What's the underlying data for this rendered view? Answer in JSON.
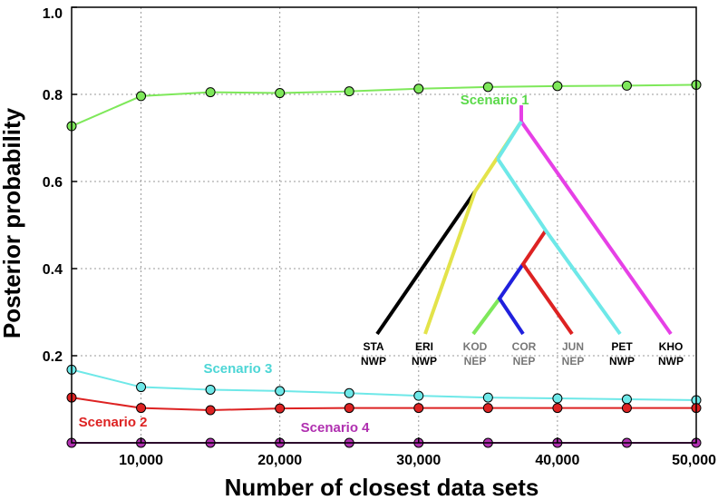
{
  "chart_data": {
    "type": "line",
    "xlabel": "Number of closest data sets",
    "ylabel": "Posterior probability",
    "xlim": [
      5000,
      50000
    ],
    "ylim": [
      0,
      1.0
    ],
    "grid": true,
    "x_ticks": [
      10000,
      20000,
      30000,
      40000,
      50000
    ],
    "x_tick_labels": [
      "10,000",
      "20,000",
      "30,000",
      "40,000",
      "50,000"
    ],
    "y_ticks": [
      0.2,
      0.4,
      0.6,
      0.8,
      1.0
    ],
    "y_tick_labels": [
      "0.2",
      "0.4",
      "0.6",
      "0.8",
      "1.0"
    ],
    "x": [
      5000,
      10000,
      15000,
      20000,
      25000,
      30000,
      35000,
      40000,
      45000,
      50000
    ],
    "series": [
      {
        "name": "Scenario 1",
        "color": "#7ee85a",
        "values": [
          0.727,
          0.796,
          0.805,
          0.803,
          0.807,
          0.813,
          0.817,
          0.819,
          0.82,
          0.822
        ],
        "label_pos": [
          0.777,
          33000
        ]
      },
      {
        "name": "Scenario 3",
        "color": "#6ee8e8",
        "values": [
          0.168,
          0.128,
          0.122,
          0.119,
          0.114,
          0.108,
          0.104,
          0.102,
          0.1,
          0.098
        ],
        "label_pos": [
          0.16,
          14500
        ]
      },
      {
        "name": "Scenario 2",
        "color": "#dd2222",
        "values": [
          0.104,
          0.08,
          0.075,
          0.079,
          0.08,
          0.08,
          0.08,
          0.08,
          0.08,
          0.08
        ],
        "label_pos": [
          0.037,
          5500
        ]
      },
      {
        "name": "Scenario 4",
        "color": "#b030b0",
        "values": [
          0.0,
          0.0,
          0.0,
          0.0,
          0.0,
          0.0,
          0.0,
          0.0,
          0.0,
          0.0
        ],
        "label_pos": [
          0.025,
          21500
        ]
      }
    ],
    "tree_inset": {
      "leaves": [
        {
          "code": "STA",
          "region": "NWP",
          "color": "#000000"
        },
        {
          "code": "ERI",
          "region": "NWP",
          "color": "#000000"
        },
        {
          "code": "KOD",
          "region": "NEP",
          "color": "#777777"
        },
        {
          "code": "COR",
          "region": "NEP",
          "color": "#777777"
        },
        {
          "code": "JUN",
          "region": "NEP",
          "color": "#777777"
        },
        {
          "code": "PET",
          "region": "NWP",
          "color": "#000000"
        },
        {
          "code": "KHO",
          "region": "NWP",
          "color": "#000000"
        }
      ]
    }
  }
}
